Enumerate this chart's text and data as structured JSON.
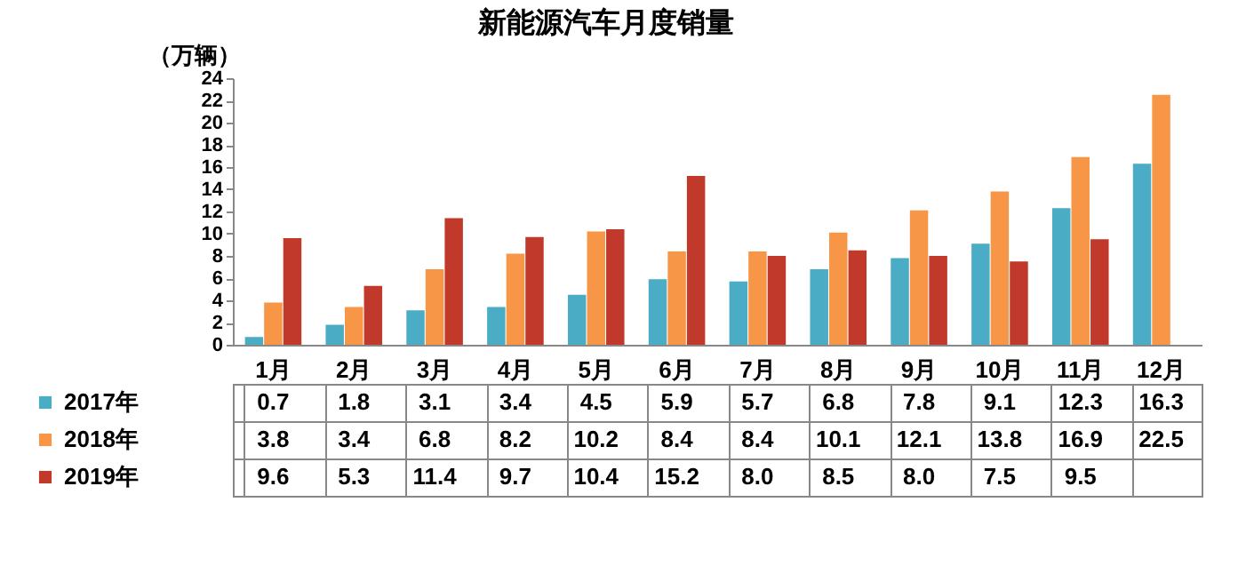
{
  "chart_data": {
    "type": "bar",
    "title": "新能源汽车月度销量",
    "ylabel": "（万辆）",
    "categories": [
      "1月",
      "2月",
      "3月",
      "4月",
      "5月",
      "6月",
      "7月",
      "8月",
      "9月",
      "10月",
      "11月",
      "12月"
    ],
    "series": [
      {
        "name": "2017年",
        "color": "#4bacc6",
        "values": [
          0.7,
          1.8,
          3.1,
          3.4,
          4.5,
          5.9,
          5.7,
          6.8,
          7.8,
          9.1,
          12.3,
          16.3
        ],
        "value_labels": [
          "0.7",
          "1.8",
          "3.1",
          "3.4",
          "4.5",
          "5.9",
          "5.7",
          "6.8",
          "7.8",
          "9.1",
          "12.3",
          "16.3"
        ]
      },
      {
        "name": "2018年",
        "color": "#f79646",
        "values": [
          3.8,
          3.4,
          6.8,
          8.2,
          10.2,
          8.4,
          8.4,
          10.1,
          12.1,
          13.8,
          16.9,
          22.5
        ],
        "value_labels": [
          "3.8",
          "3.4",
          "6.8",
          "8.2",
          "10.2",
          "8.4",
          "8.4",
          "10.1",
          "12.1",
          "13.8",
          "16.9",
          "22.5"
        ]
      },
      {
        "name": "2019年",
        "color": "#c0392b",
        "values": [
          9.6,
          5.3,
          11.4,
          9.7,
          10.4,
          15.2,
          8.0,
          8.5,
          8.0,
          7.5,
          9.5,
          null
        ],
        "value_labels": [
          "9.6",
          "5.3",
          "11.4",
          "9.7",
          "10.4",
          "15.2",
          "8.0",
          "8.5",
          "8.0",
          "7.5",
          "9.5",
          null
        ]
      }
    ],
    "ylim": [
      0,
      24
    ],
    "yticks": [
      0,
      2,
      4,
      6,
      8,
      10,
      12,
      14,
      16,
      18,
      20,
      22,
      24
    ],
    "grid": false,
    "legend": "bottom left"
  }
}
